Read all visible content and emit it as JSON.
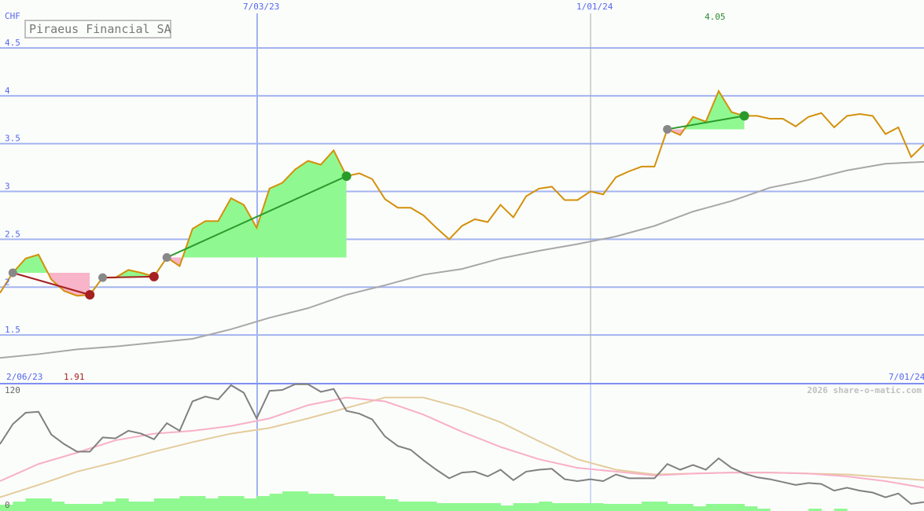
{
  "chart_data": {
    "type": "line",
    "title": "Piraeus Financial SA",
    "unit_label": "CHF",
    "x_labels": {
      "start": "2/06/23",
      "mid1": "7/03/23",
      "mid2": "1/01/24",
      "end": "7/01/24"
    },
    "price_panel": {
      "ylim": [
        1.5,
        4.5
      ],
      "y_ticks": [
        "4.5",
        "4",
        "3.5",
        "3",
        "2.5",
        "2",
        "1.5"
      ],
      "tick_values": [
        4.5,
        4,
        3.5,
        3,
        2.5,
        2,
        1.5
      ],
      "max_label": "4.05",
      "min_label": "1.91",
      "price": [
        1.94,
        2.15,
        2.3,
        2.34,
        2.08,
        1.96,
        1.91,
        1.92,
        2.1,
        2.1,
        2.18,
        2.15,
        2.11,
        2.31,
        2.22,
        2.61,
        2.69,
        2.69,
        2.93,
        2.86,
        2.62,
        3.03,
        3.09,
        3.23,
        3.32,
        3.28,
        3.43,
        3.16,
        3.19,
        3.13,
        2.92,
        2.83,
        2.83,
        2.75,
        2.62,
        2.5,
        2.64,
        2.71,
        2.68,
        2.86,
        2.73,
        2.95,
        3.03,
        3.05,
        2.91,
        2.91,
        3.0,
        2.97,
        3.15,
        3.21,
        3.26,
        3.26,
        3.65,
        3.59,
        3.78,
        3.73,
        4.05,
        3.83,
        3.79,
        3.79,
        3.76,
        3.76,
        3.68,
        3.78,
        3.82,
        3.67,
        3.79,
        3.81,
        3.79,
        3.6,
        3.67,
        3.36,
        3.49
      ],
      "moving_average": [
        1.26,
        1.3,
        1.35,
        1.38,
        1.42,
        1.46,
        1.56,
        1.68,
        1.78,
        1.92,
        2.02,
        2.13,
        2.19,
        2.3,
        2.38,
        2.45,
        2.53,
        2.64,
        2.79,
        2.9,
        3.04,
        3.12,
        3.22,
        3.29,
        3.31
      ],
      "trades": [
        {
          "entry_index": 1,
          "exit_index": 7,
          "result": "loss"
        },
        {
          "entry_index": 8,
          "exit_index": 12,
          "result": "loss"
        },
        {
          "entry_index": 13,
          "exit_index": 27,
          "result": "gain"
        },
        {
          "entry_index": 52,
          "exit_index": 58,
          "result": "gain"
        }
      ]
    },
    "indicator_panel": {
      "ylim": [
        0,
        120
      ],
      "y_ticks": [
        "120",
        "0"
      ],
      "oscillator": [
        63,
        84,
        96,
        97,
        73,
        63,
        55,
        55,
        70,
        69,
        77,
        74,
        68,
        85,
        77,
        108,
        113,
        110,
        125,
        117,
        90,
        119,
        120,
        126,
        126,
        118,
        121,
        98,
        95,
        89,
        71,
        61,
        57,
        46,
        36,
        27,
        33,
        34,
        29,
        36,
        25,
        34,
        36,
        37,
        26,
        24,
        26,
        24,
        31,
        27,
        27,
        27,
        42,
        36,
        41,
        36,
        48,
        38,
        32,
        28,
        26,
        23,
        20,
        22,
        21,
        14,
        17,
        14,
        12,
        7,
        11,
        0,
        2
      ],
      "signal_fast": [
        24,
        42,
        54,
        67,
        74,
        77,
        82,
        90,
        104,
        112,
        108,
        94,
        76,
        60,
        47,
        38,
        34,
        30,
        32,
        33,
        33,
        32,
        29,
        24,
        17
      ],
      "signal_slow": [
        7,
        20,
        34,
        44,
        55,
        65,
        74,
        80,
        90,
        101,
        112,
        112,
        101,
        86,
        66,
        47,
        36,
        31,
        32,
        33,
        33,
        32,
        31,
        28,
        25
      ],
      "volume": [
        8,
        12,
        16,
        16,
        12,
        9,
        9,
        9,
        12,
        16,
        12,
        12,
        16,
        16,
        19,
        19,
        16,
        19,
        19,
        16,
        19,
        22,
        25,
        25,
        22,
        22,
        19,
        19,
        19,
        19,
        15,
        12,
        12,
        12,
        10,
        10,
        10,
        10,
        10,
        7,
        10,
        10,
        12,
        10,
        10,
        10,
        10,
        9,
        9,
        9,
        12,
        12,
        9,
        9,
        6,
        9,
        9,
        9,
        6,
        3,
        0,
        0,
        0,
        3,
        0,
        3,
        0,
        0,
        0,
        0,
        0,
        0,
        0
      ]
    },
    "grid": true,
    "colors": {
      "price": "#d4900a",
      "moving_average": "#a8a8a8",
      "grid": "#a3b3f0",
      "axis_text": "#5566ee",
      "gain": "#90f890",
      "loss": "#f8b4c8",
      "gain_marker": "#2a9a2a",
      "loss_marker": "#a52020",
      "entry_marker": "#888888",
      "oscillator": "#808080",
      "signal_fast": "#f8b0c8",
      "signal_slow": "#e4cc9c",
      "volume": "#90f890"
    }
  },
  "watermark": "2026 share-o-matic.com"
}
